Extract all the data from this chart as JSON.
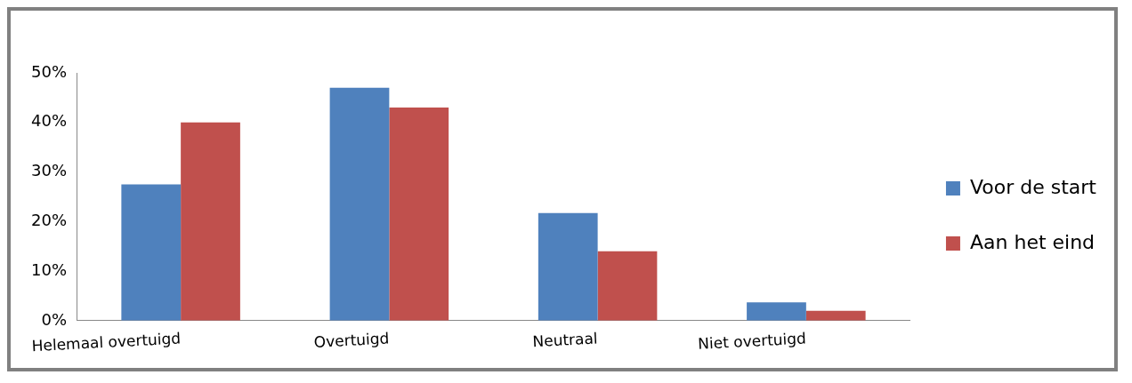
{
  "chart_data": {
    "type": "bar",
    "categories": [
      "Helemaal overtuigd",
      "Overtuigd",
      "Neutraal",
      "Niet overtuigd"
    ],
    "series": [
      {
        "name": "Voor de start",
        "color": "#4f81bd",
        "values": [
          27.5,
          47,
          21.7,
          3.7
        ]
      },
      {
        "name": "Aan het eind",
        "color": "#c0504d",
        "values": [
          40,
          43,
          14,
          2
        ]
      }
    ],
    "ylim": [
      0,
      50
    ],
    "yticks": [
      {
        "value": 0,
        "label": "0%"
      },
      {
        "value": 10,
        "label": "10%"
      },
      {
        "value": 20,
        "label": "20%"
      },
      {
        "value": 30,
        "label": "30%"
      },
      {
        "value": 40,
        "label": "40%"
      },
      {
        "value": 50,
        "label": "50%"
      }
    ],
    "grid": false,
    "legend": "right"
  }
}
